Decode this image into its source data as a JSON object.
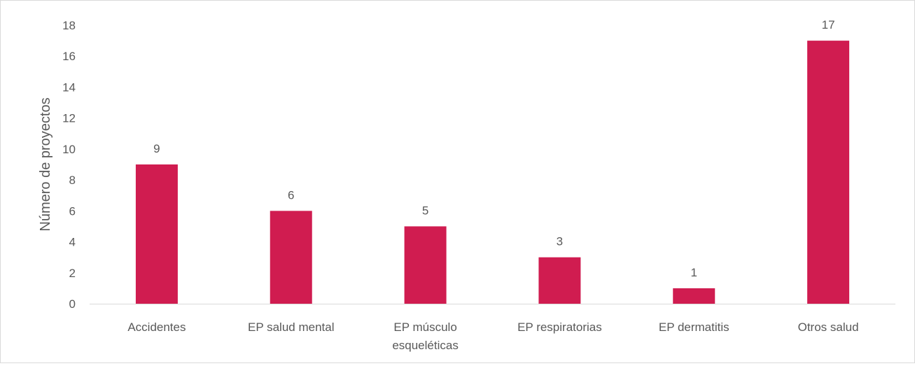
{
  "chart_data": {
    "type": "bar",
    "title": "",
    "xlabel": "",
    "ylabel": "Número de proyectos",
    "categories": [
      [
        "Accidentes"
      ],
      [
        "EP salud mental"
      ],
      [
        "EP músculo",
        "esqueléticas"
      ],
      [
        "EP respiratorias"
      ],
      [
        "EP dermatitis"
      ],
      [
        "Otros salud"
      ]
    ],
    "values": [
      9,
      6,
      5,
      3,
      1,
      17
    ],
    "data_labels": [
      "9",
      "6",
      "5",
      "3",
      "1",
      "17"
    ],
    "y_ticks": [
      "0",
      "2",
      "4",
      "6",
      "8",
      "10",
      "12",
      "14",
      "16",
      "18"
    ],
    "ylim": [
      0,
      18
    ],
    "grid": false,
    "legend": "none",
    "colors": {
      "bar": "#d01c50",
      "axis": "#d9d9d9",
      "text": "#595959"
    }
  }
}
